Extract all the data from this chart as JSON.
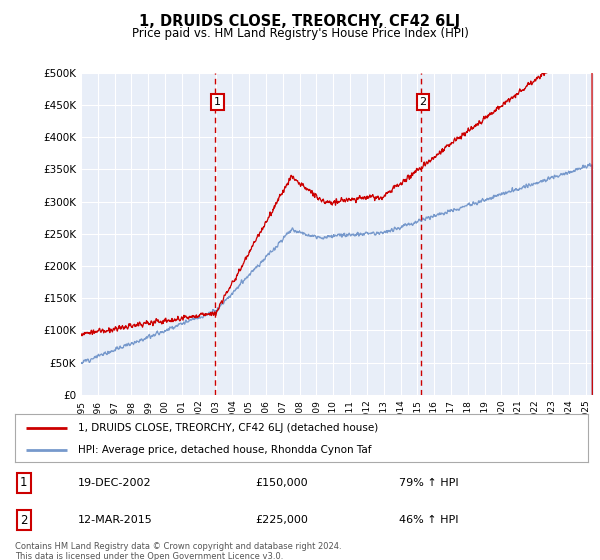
{
  "title": "1, DRUIDS CLOSE, TREORCHY, CF42 6LJ",
  "subtitle": "Price paid vs. HM Land Registry's House Price Index (HPI)",
  "red_label": "1, DRUIDS CLOSE, TREORCHY, CF42 6LJ (detached house)",
  "blue_label": "HPI: Average price, detached house, Rhondda Cynon Taf",
  "event1_date": "19-DEC-2002",
  "event1_price": "£150,000",
  "event1_hpi": "79% ↑ HPI",
  "event2_date": "12-MAR-2015",
  "event2_price": "£225,000",
  "event2_hpi": "46% ↑ HPI",
  "event1_x": 2002.97,
  "event2_x": 2015.19,
  "event1_marker_y": 450000,
  "event2_marker_y": 450000,
  "ylim": [
    0,
    500000
  ],
  "xlim_start": 1995.0,
  "xlim_end": 2025.5,
  "footnote": "Contains HM Land Registry data © Crown copyright and database right 2024.\nThis data is licensed under the Open Government Licence v3.0.",
  "background_color": "#ffffff",
  "plot_bg_color": "#e8eef8",
  "grid_color": "#ffffff",
  "red_color": "#cc0000",
  "blue_color": "#7799cc",
  "vline_color": "#cc0000"
}
